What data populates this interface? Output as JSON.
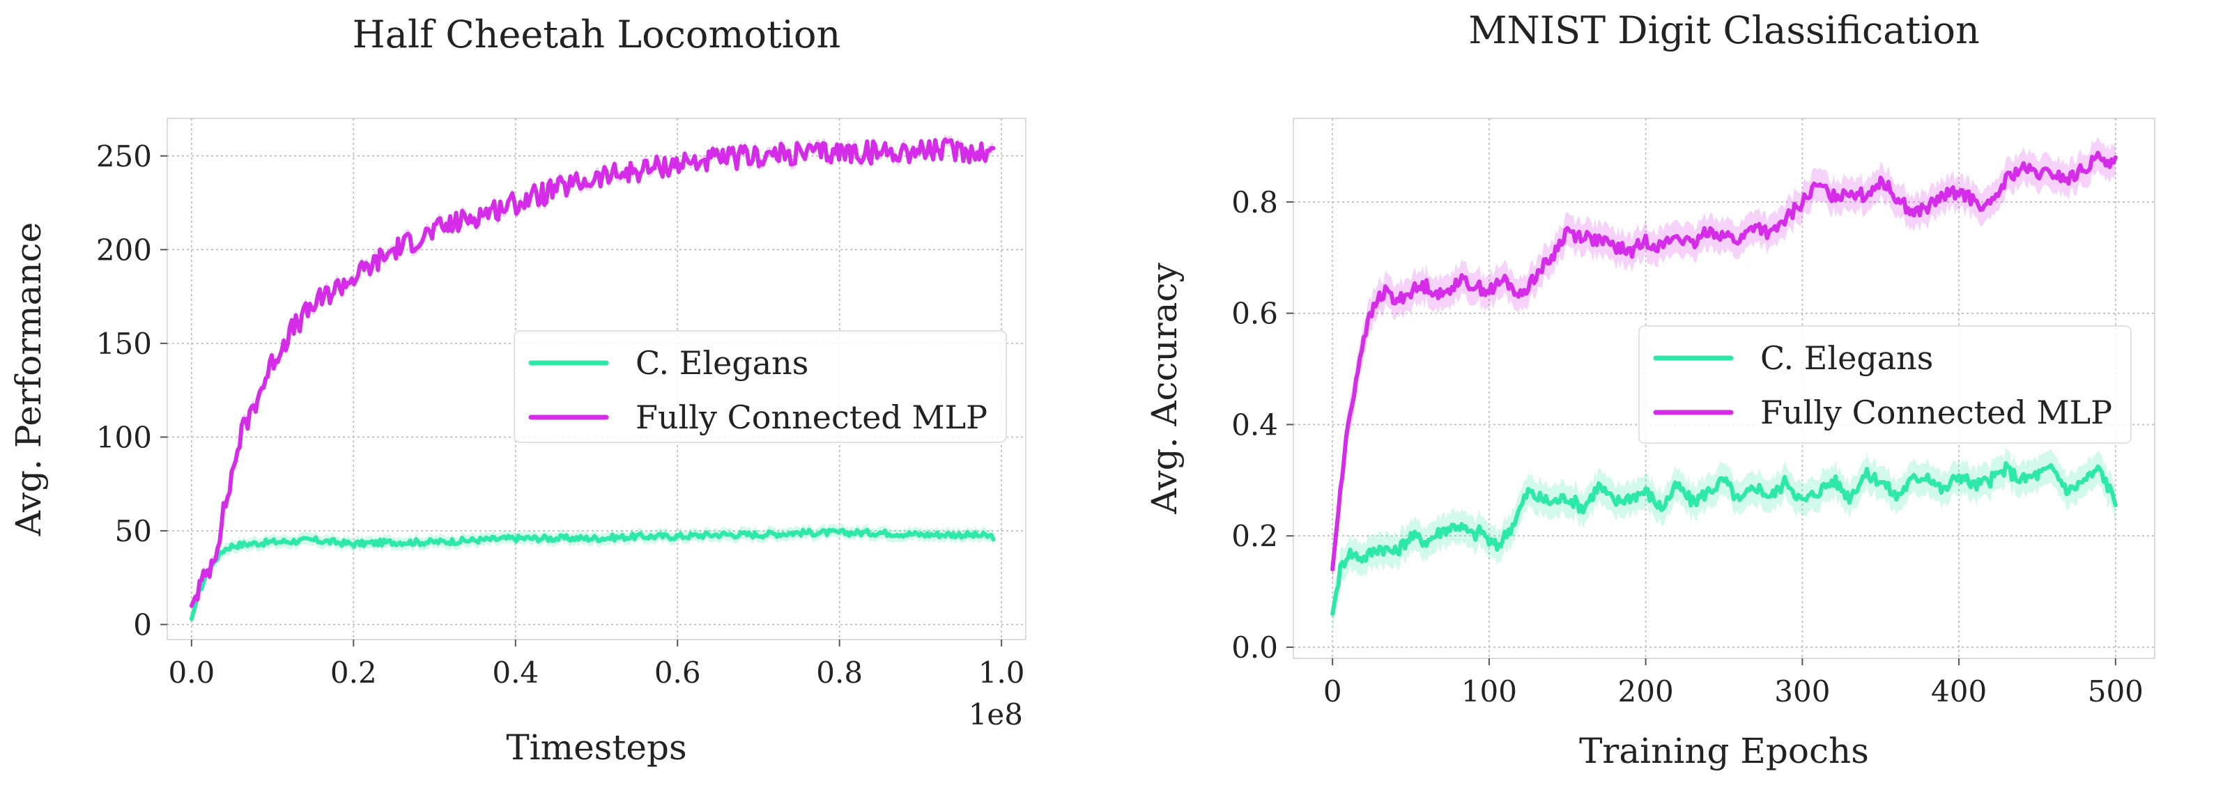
{
  "chart_data": [
    {
      "type": "line",
      "title": "Half Cheetah Locomotion",
      "xlabel": "Timesteps",
      "ylabel": "Avg. Performance",
      "x_offset_label": "1e8",
      "xlim": [
        -0.03,
        1.03
      ],
      "ylim": [
        -8,
        270
      ],
      "xticks": [
        0.0,
        0.2,
        0.4,
        0.6,
        0.8,
        1.0
      ],
      "xtick_labels": [
        "0.0",
        "0.2",
        "0.4",
        "0.6",
        "0.8",
        "1.0"
      ],
      "yticks": [
        0,
        50,
        100,
        150,
        200,
        250
      ],
      "ytick_labels": [
        "0",
        "50",
        "100",
        "150",
        "200",
        "250"
      ],
      "grid": true,
      "legend_position": "center-right",
      "series": [
        {
          "name": "C. Elegans",
          "color": "#2ee8a8",
          "x": [
            0.0,
            0.01,
            0.02,
            0.03,
            0.04,
            0.05,
            0.07,
            0.1,
            0.15,
            0.2,
            0.25,
            0.3,
            0.35,
            0.4,
            0.45,
            0.5,
            0.55,
            0.6,
            0.65,
            0.7,
            0.75,
            0.8,
            0.85,
            0.9,
            0.95,
            0.99
          ],
          "y": [
            3,
            18,
            28,
            35,
            40,
            42,
            43,
            44,
            45,
            43,
            44,
            44,
            45,
            46,
            46,
            46,
            47,
            47,
            48,
            48,
            49,
            49,
            49,
            48,
            48,
            47
          ]
        },
        {
          "name": "Fully Connected MLP",
          "color": "#d42ce8",
          "x": [
            0.0,
            0.01,
            0.02,
            0.03,
            0.04,
            0.05,
            0.06,
            0.08,
            0.1,
            0.12,
            0.15,
            0.18,
            0.2,
            0.25,
            0.3,
            0.35,
            0.4,
            0.45,
            0.5,
            0.55,
            0.6,
            0.65,
            0.7,
            0.75,
            0.8,
            0.85,
            0.9,
            0.95,
            0.99
          ],
          "y": [
            10,
            20,
            28,
            40,
            60,
            80,
            100,
            120,
            140,
            155,
            170,
            180,
            185,
            200,
            210,
            218,
            225,
            232,
            238,
            242,
            246,
            248,
            250,
            251,
            252,
            252,
            253,
            253,
            252
          ]
        }
      ]
    },
    {
      "type": "line",
      "title": "MNIST Digit Classification",
      "xlabel": "Training Epochs",
      "ylabel": "Avg. Accuracy",
      "xlim": [
        -25,
        525
      ],
      "ylim": [
        -0.02,
        0.95
      ],
      "xticks": [
        0,
        100,
        200,
        300,
        400,
        500
      ],
      "xtick_labels": [
        "0",
        "100",
        "200",
        "300",
        "400",
        "500"
      ],
      "yticks": [
        0.0,
        0.2,
        0.4,
        0.6,
        0.8
      ],
      "ytick_labels": [
        "0.0",
        "0.2",
        "0.4",
        "0.6",
        "0.8"
      ],
      "grid": true,
      "legend_position": "center-right",
      "series": [
        {
          "name": "C. Elegans",
          "color": "#2ee8a8",
          "x": [
            0,
            5,
            10,
            20,
            30,
            40,
            50,
            60,
            70,
            80,
            90,
            95,
            100,
            105,
            110,
            115,
            120,
            125,
            130,
            140,
            150,
            160,
            170,
            180,
            190,
            200,
            210,
            220,
            230,
            240,
            250,
            260,
            270,
            280,
            290,
            300,
            310,
            320,
            330,
            340,
            350,
            360,
            370,
            380,
            390,
            400,
            410,
            420,
            430,
            440,
            450,
            460,
            470,
            480,
            490,
            500
          ],
          "y": [
            0.06,
            0.14,
            0.17,
            0.16,
            0.18,
            0.17,
            0.2,
            0.19,
            0.21,
            0.22,
            0.2,
            0.21,
            0.19,
            0.18,
            0.2,
            0.22,
            0.25,
            0.28,
            0.27,
            0.26,
            0.27,
            0.25,
            0.29,
            0.26,
            0.27,
            0.28,
            0.25,
            0.29,
            0.26,
            0.28,
            0.3,
            0.26,
            0.29,
            0.27,
            0.3,
            0.26,
            0.28,
            0.3,
            0.27,
            0.31,
            0.3,
            0.27,
            0.3,
            0.31,
            0.28,
            0.31,
            0.29,
            0.3,
            0.32,
            0.3,
            0.31,
            0.32,
            0.28,
            0.3,
            0.32,
            0.26
          ]
        },
        {
          "name": "Fully Connected MLP",
          "color": "#d42ce8",
          "x": [
            0,
            5,
            10,
            15,
            20,
            25,
            30,
            35,
            40,
            50,
            60,
            70,
            80,
            90,
            100,
            110,
            120,
            130,
            140,
            150,
            155,
            160,
            170,
            180,
            190,
            200,
            210,
            220,
            230,
            240,
            250,
            260,
            270,
            280,
            290,
            300,
            310,
            320,
            330,
            340,
            350,
            360,
            370,
            380,
            390,
            400,
            410,
            420,
            430,
            440,
            450,
            460,
            470,
            480,
            490,
            500
          ],
          "y": [
            0.14,
            0.28,
            0.4,
            0.48,
            0.56,
            0.6,
            0.63,
            0.64,
            0.62,
            0.64,
            0.65,
            0.63,
            0.66,
            0.65,
            0.64,
            0.66,
            0.63,
            0.67,
            0.7,
            0.75,
            0.74,
            0.74,
            0.73,
            0.72,
            0.71,
            0.73,
            0.72,
            0.74,
            0.72,
            0.75,
            0.74,
            0.73,
            0.76,
            0.74,
            0.77,
            0.8,
            0.83,
            0.81,
            0.82,
            0.81,
            0.84,
            0.81,
            0.78,
            0.79,
            0.81,
            0.82,
            0.8,
            0.79,
            0.84,
            0.86,
            0.85,
            0.85,
            0.84,
            0.86,
            0.88,
            0.87
          ]
        }
      ]
    }
  ]
}
